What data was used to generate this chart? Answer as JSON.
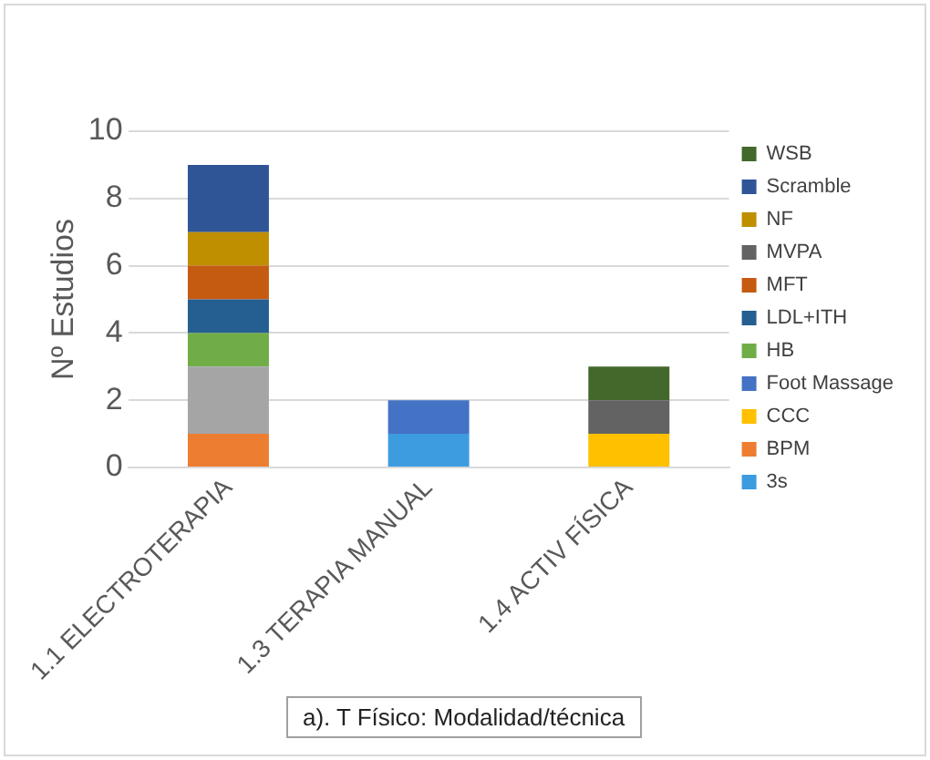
{
  "chart_data": {
    "type": "bar",
    "stacked": true,
    "ylabel": "Nº Estudios",
    "categories": [
      "1.1 ELECTROTERAPIA",
      "1.3 TERAPIA MANUAL",
      "1.4 ACTIV FÍSICA"
    ],
    "series": [
      {
        "name": "3s",
        "color": "#3d9be0",
        "values": [
          0,
          1,
          0
        ]
      },
      {
        "name": "BPM",
        "color": "#ed7d31",
        "values": [
          1,
          0,
          0
        ]
      },
      {
        "color": "#a5a5a5",
        "values": [
          2,
          0,
          0
        ]
      },
      {
        "name": "CCC",
        "color": "#ffc000",
        "values": [
          0,
          0,
          1
        ]
      },
      {
        "name": "Foot Massage",
        "color": "#4472c4",
        "values": [
          0,
          1,
          0
        ]
      },
      {
        "name": "HB",
        "color": "#70ad47",
        "values": [
          1,
          0,
          0
        ]
      },
      {
        "name": "LDL+ITH",
        "color": "#255e91",
        "values": [
          1,
          0,
          0
        ]
      },
      {
        "name": "MFT",
        "color": "#c55a11",
        "values": [
          1,
          0,
          0
        ]
      },
      {
        "name": "MVPA",
        "color": "#636363",
        "values": [
          0,
          0,
          1
        ]
      },
      {
        "name": "NF",
        "color": "#bf8f00",
        "values": [
          1,
          0,
          0
        ]
      },
      {
        "name": "Scramble",
        "color": "#2f5597",
        "values": [
          2,
          0,
          0
        ]
      },
      {
        "name": "WSB",
        "color": "#43682b",
        "values": [
          0,
          0,
          1
        ]
      }
    ],
    "ylim": [
      0,
      10
    ],
    "yticks": [
      0,
      2,
      4,
      6,
      8,
      10
    ],
    "grid": "y",
    "legend": "right",
    "annotations": [
      "a). T Físico: Modalidad/técnica"
    ]
  }
}
